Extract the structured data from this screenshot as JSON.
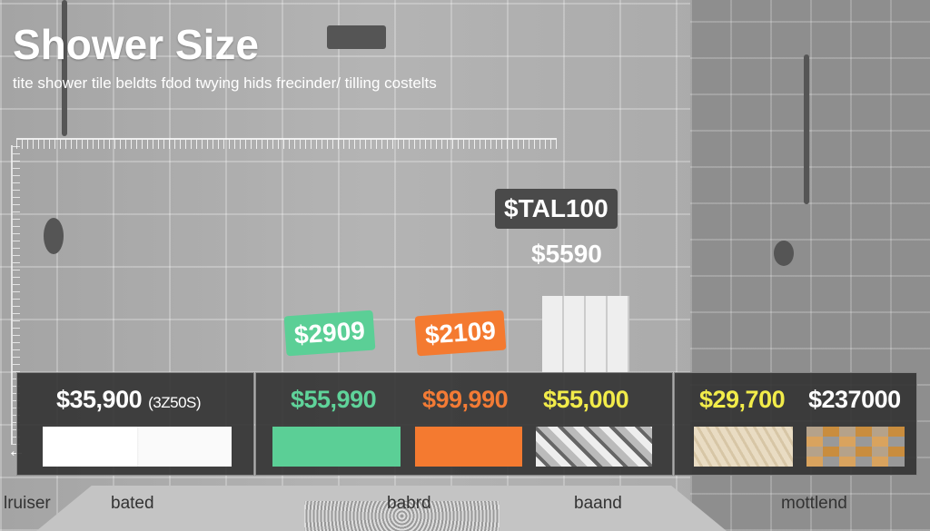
{
  "title": "Shower Size",
  "subtitle": "tite shower tile beldts fdod twying hids frecinder/ tilling costelts",
  "tags": {
    "total": "$TAL100",
    "total_value": "$5590",
    "green": "$2909",
    "orange": "$2109"
  },
  "panel_prices": [
    {
      "value": "$35,900",
      "note": "(3Z50S)",
      "color": "#ffffff"
    },
    {
      "value": "$55,990",
      "color": "#5fd39a"
    },
    {
      "value": "$99,990",
      "color": "#f37b35"
    },
    {
      "value": "$55,000",
      "color": "#f2ec4a"
    },
    {
      "value": "$29,700",
      "color": "#f2ec4a"
    },
    {
      "value": "$237000",
      "color": "#ffffff"
    }
  ],
  "swatches": [
    "white-marble",
    "green",
    "orange",
    "mosaic-gray",
    "light-wood",
    "mixed-wood"
  ],
  "labels": [
    "lruiser",
    "bated",
    "babrd",
    "baand",
    "mottlend"
  ],
  "colors": {
    "green": "#5bcf96",
    "orange": "#f47a30",
    "panel": "#353535"
  }
}
